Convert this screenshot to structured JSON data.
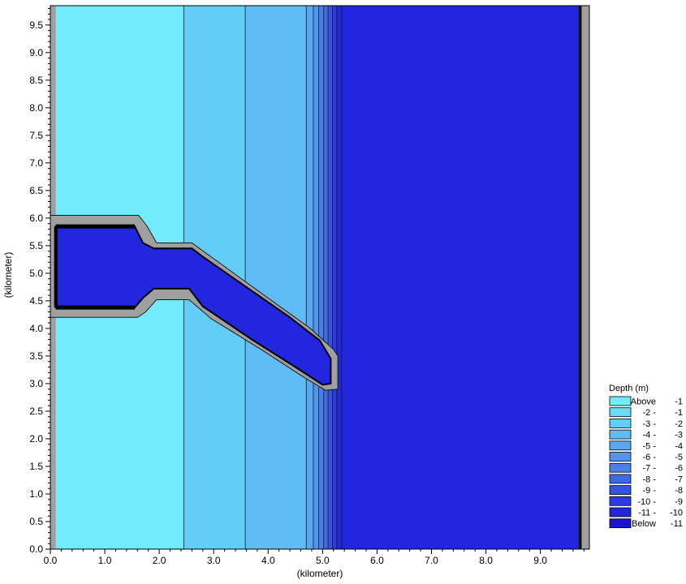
{
  "chart_data": {
    "type": "heatmap",
    "xlabel": "(kilometer)",
    "ylabel": "(kilometer)",
    "xlim": [
      0.0,
      9.9
    ],
    "ylim": [
      0.0,
      9.85
    ],
    "x_ticks": [
      "0.0",
      "1.0",
      "2.0",
      "3.0",
      "4.0",
      "5.0",
      "6.0",
      "7.0",
      "8.0",
      "9.0"
    ],
    "y_ticks": [
      "0.0",
      "0.5",
      "1.0",
      "1.5",
      "2.0",
      "2.5",
      "3.0",
      "3.5",
      "4.0",
      "4.5",
      "5.0",
      "5.5",
      "6.0",
      "6.5",
      "7.0",
      "7.5",
      "8.0",
      "8.5",
      "9.0",
      "9.5"
    ],
    "colorbar": {
      "title": "Depth (m)",
      "bins": [
        {
          "label_low": "Above",
          "label_high": "-1",
          "color": "#72ecfb"
        },
        {
          "label_low": "-2 -",
          "label_high": "-1",
          "color": "#67dcf7"
        },
        {
          "label_low": "-3 -",
          "label_high": "-2",
          "color": "#62cdf6"
        },
        {
          "label_low": "-4 -",
          "label_high": "-3",
          "color": "#5fbcf5"
        },
        {
          "label_low": "-5 -",
          "label_high": "-4",
          "color": "#5aa8f2"
        },
        {
          "label_low": "-6 -",
          "label_high": "-5",
          "color": "#5394ee"
        },
        {
          "label_low": "-7 -",
          "label_high": "-6",
          "color": "#4a80ea"
        },
        {
          "label_low": "-8 -",
          "label_high": "-7",
          "color": "#4169e6"
        },
        {
          "label_low": "-9 -",
          "label_high": "-8",
          "color": "#3653e4"
        },
        {
          "label_low": "-10 -",
          "label_high": "-9",
          "color": "#2b3ae1"
        },
        {
          "label_low": "-11 -",
          "label_high": "-10",
          "color": "#2226de"
        },
        {
          "label_low": "Below",
          "label_high": "-11",
          "color": "#1a14d4"
        }
      ]
    },
    "depth_bands": [
      {
        "x_start": 0.1,
        "x_end": 2.45,
        "depth_bin": "Above -1"
      },
      {
        "x_start": 2.45,
        "x_end": 3.58,
        "depth_bin": "-3 - -2"
      },
      {
        "x_start": 3.58,
        "x_end": 4.7,
        "depth_bin": "-4 - -3"
      },
      {
        "x_start": 4.7,
        "x_end": 5.35,
        "depth_bin": "-5 - -11 (steep slope)"
      },
      {
        "x_start": 5.35,
        "x_end": 9.7,
        "depth_bin": "-11 - -10"
      }
    ],
    "land_boundary": {
      "x_left": [
        0.0,
        0.1
      ],
      "x_right": [
        9.7,
        9.9
      ]
    },
    "channel": {
      "basin": {
        "x": [
          0.1,
          1.55
        ],
        "y": [
          4.35,
          5.85
        ]
      },
      "throat": {
        "x": [
          1.9,
          2.6
        ],
        "y": [
          4.72,
          5.45
        ]
      },
      "outer_channel_end": {
        "x": 5.15,
        "y": [
          3.0,
          3.45
        ]
      },
      "depth_bin": "-11 - -10"
    }
  }
}
